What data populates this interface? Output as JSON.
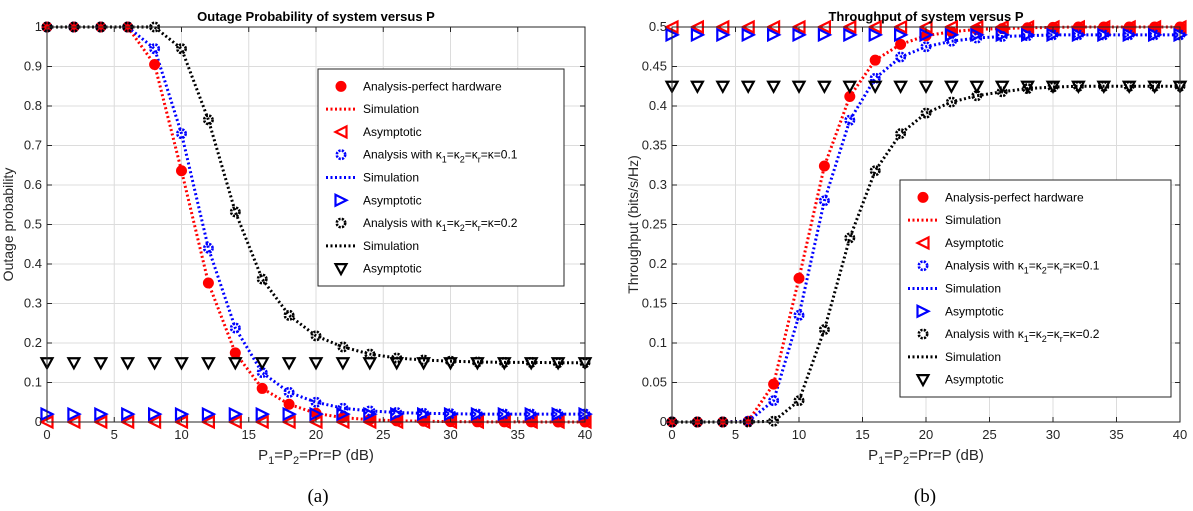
{
  "colors": {
    "perfect": "#ff0000",
    "k01": "#0000ff",
    "k02": "#000000"
  },
  "chart_data": [
    {
      "type": "line",
      "title": "Outage Probability of system versus P",
      "xlabel_parts": [
        "P",
        "1",
        "=P",
        "2",
        "=Pr=P (dB)"
      ],
      "ylabel": "Outage probability",
      "caption": "(a)",
      "xlim": [
        0,
        40
      ],
      "ylim": [
        0,
        1
      ],
      "xticks": [
        0,
        5,
        10,
        15,
        20,
        25,
        30,
        35,
        40
      ],
      "yticks": [
        0,
        0.1,
        0.2,
        0.3,
        0.4,
        0.5,
        0.6,
        0.7,
        0.8,
        0.9,
        1
      ],
      "ytick_labels": [
        "0",
        "0.1",
        "0.2",
        "0.3",
        "0.4",
        "0.5",
        "0.6",
        "0.7",
        "0.8",
        "0.9",
        "1"
      ],
      "grid": true,
      "legend_position": "right",
      "x": [
        0,
        2,
        4,
        6,
        8,
        10,
        12,
        14,
        16,
        18,
        20,
        22,
        24,
        26,
        28,
        30,
        32,
        34,
        36,
        38,
        40
      ],
      "series": [
        {
          "legend": "Analysis-perfect hardware",
          "group": "perfect",
          "style": "dot",
          "values": [
            1,
            1,
            1,
            1,
            0.905,
            0.636,
            0.352,
            0.175,
            0.085,
            0.045,
            0.022,
            0.011,
            0.006,
            0.003,
            0.002,
            0.001,
            0.0005,
            0.0003,
            0.0002,
            0.0001,
            0.0001
          ]
        },
        {
          "legend": "Simulation",
          "group": "perfect",
          "style": "dotted-line",
          "values": [
            1,
            1,
            1,
            1,
            0.905,
            0.636,
            0.352,
            0.175,
            0.085,
            0.045,
            0.022,
            0.011,
            0.006,
            0.003,
            0.002,
            0.001,
            0.0005,
            0.0003,
            0.0002,
            0.0001,
            0.0001
          ]
        },
        {
          "legend": "Asymptotic",
          "group": "perfect",
          "style": "triangle-left",
          "values": [
            0,
            0,
            0,
            0,
            0,
            0,
            0,
            0,
            0,
            0,
            0,
            0,
            0,
            0,
            0,
            0,
            0,
            0,
            0,
            0,
            0
          ]
        },
        {
          "legend_parts": [
            "Analysis with κ",
            "1",
            "=κ",
            "2",
            "=κ",
            "r",
            "=κ=0.1"
          ],
          "group": "k01",
          "style": "ring",
          "values": [
            1,
            1,
            1,
            1,
            0.945,
            0.73,
            0.44,
            0.238,
            0.125,
            0.075,
            0.05,
            0.035,
            0.028,
            0.024,
            0.022,
            0.021,
            0.02,
            0.02,
            0.02,
            0.02,
            0.02
          ]
        },
        {
          "legend": "Simulation",
          "group": "k01",
          "style": "dotted-line",
          "values": [
            1,
            1,
            1,
            1,
            0.945,
            0.73,
            0.44,
            0.238,
            0.125,
            0.075,
            0.05,
            0.035,
            0.028,
            0.024,
            0.022,
            0.021,
            0.02,
            0.02,
            0.02,
            0.02,
            0.02
          ]
        },
        {
          "legend": "Asymptotic",
          "group": "k01",
          "style": "triangle-right",
          "values": [
            0.02,
            0.02,
            0.02,
            0.02,
            0.02,
            0.02,
            0.02,
            0.02,
            0.02,
            0.02,
            0.02,
            0.02,
            0.02,
            0.02,
            0.02,
            0.02,
            0.02,
            0.02,
            0.02,
            0.02,
            0.02
          ]
        },
        {
          "legend_parts": [
            "Analysis with κ",
            "1",
            "=κ",
            "2",
            "=κ",
            "r",
            "=κ=0.2"
          ],
          "group": "k02",
          "style": "ring",
          "values": [
            1,
            1,
            1,
            1,
            1,
            0.945,
            0.765,
            0.532,
            0.362,
            0.27,
            0.218,
            0.19,
            0.172,
            0.162,
            0.157,
            0.154,
            0.152,
            0.151,
            0.151,
            0.15,
            0.15
          ]
        },
        {
          "legend": "Simulation",
          "group": "k02",
          "style": "dotted-line",
          "values": [
            1,
            1,
            1,
            1,
            1,
            0.945,
            0.765,
            0.532,
            0.362,
            0.27,
            0.218,
            0.19,
            0.172,
            0.162,
            0.157,
            0.154,
            0.152,
            0.151,
            0.151,
            0.15,
            0.15
          ]
        },
        {
          "legend": "Asymptotic",
          "group": "k02",
          "style": "triangle-down",
          "values": [
            0.15,
            0.15,
            0.15,
            0.15,
            0.15,
            0.15,
            0.15,
            0.15,
            0.15,
            0.15,
            0.15,
            0.15,
            0.15,
            0.15,
            0.15,
            0.15,
            0.15,
            0.15,
            0.15,
            0.15,
            0.15
          ]
        }
      ]
    },
    {
      "type": "line",
      "title": "Throughput of system versus P",
      "xlabel_parts": [
        "P",
        "1",
        "=P",
        "2",
        "=Pr=P (dB)"
      ],
      "ylabel": "Throughput (bits/s/Hz)",
      "caption": "(b)",
      "xlim": [
        0,
        40
      ],
      "ylim": [
        0,
        0.5
      ],
      "xticks": [
        0,
        5,
        10,
        15,
        20,
        25,
        30,
        35,
        40
      ],
      "yticks": [
        0,
        0.05,
        0.1,
        0.15,
        0.2,
        0.25,
        0.3,
        0.35,
        0.4,
        0.45,
        0.5
      ],
      "ytick_labels": [
        "0",
        "0.05",
        "0.1",
        "0.15",
        "0.2",
        "0.25",
        "0.3",
        "0.35",
        "0.4",
        "0.45",
        "0.5"
      ],
      "grid": true,
      "legend_position": "right",
      "x": [
        0,
        2,
        4,
        6,
        8,
        10,
        12,
        14,
        16,
        18,
        20,
        22,
        24,
        26,
        28,
        30,
        32,
        34,
        36,
        38,
        40
      ],
      "series": [
        {
          "legend": "Analysis-perfect hardware",
          "group": "perfect",
          "style": "dot",
          "values": [
            0,
            0,
            0,
            0.001,
            0.048,
            0.182,
            0.324,
            0.412,
            0.458,
            0.478,
            0.489,
            0.494,
            0.497,
            0.498,
            0.499,
            0.4995,
            0.5,
            0.5,
            0.5,
            0.5,
            0.5
          ]
        },
        {
          "legend": "Simulation",
          "group": "perfect",
          "style": "dotted-line",
          "values": [
            0,
            0,
            0,
            0.001,
            0.048,
            0.182,
            0.324,
            0.412,
            0.458,
            0.478,
            0.489,
            0.494,
            0.497,
            0.498,
            0.499,
            0.4995,
            0.5,
            0.5,
            0.5,
            0.5,
            0.5
          ]
        },
        {
          "legend": "Asymptotic",
          "group": "perfect",
          "style": "triangle-left",
          "values": [
            0.5,
            0.5,
            0.5,
            0.5,
            0.5,
            0.5,
            0.5,
            0.5,
            0.5,
            0.5,
            0.5,
            0.5,
            0.5,
            0.5,
            0.5,
            0.5,
            0.5,
            0.5,
            0.5,
            0.5,
            0.5
          ]
        },
        {
          "legend_parts": [
            "Analysis with κ",
            "1",
            "=κ",
            "2",
            "=κ",
            "r",
            "=κ=0.1"
          ],
          "group": "k01",
          "style": "ring",
          "values": [
            0,
            0,
            0,
            0.001,
            0.027,
            0.135,
            0.28,
            0.382,
            0.435,
            0.462,
            0.475,
            0.482,
            0.486,
            0.488,
            0.489,
            0.49,
            0.49,
            0.49,
            0.49,
            0.49,
            0.49
          ]
        },
        {
          "legend": "Simulation",
          "group": "k01",
          "style": "dotted-line",
          "values": [
            0,
            0,
            0,
            0.001,
            0.027,
            0.135,
            0.28,
            0.382,
            0.435,
            0.462,
            0.475,
            0.482,
            0.486,
            0.488,
            0.489,
            0.49,
            0.49,
            0.49,
            0.49,
            0.49,
            0.49
          ]
        },
        {
          "legend": "Asymptotic",
          "group": "k01",
          "style": "triangle-right",
          "values": [
            0.49,
            0.49,
            0.49,
            0.49,
            0.49,
            0.49,
            0.49,
            0.49,
            0.49,
            0.49,
            0.49,
            0.49,
            0.49,
            0.49,
            0.49,
            0.49,
            0.49,
            0.49,
            0.49,
            0.49,
            0.49
          ]
        },
        {
          "legend_parts": [
            "Analysis with κ",
            "1",
            "=κ",
            "2",
            "=κ",
            "r",
            "=κ=0.2"
          ],
          "group": "k02",
          "style": "ring",
          "values": [
            0,
            0,
            0,
            0,
            0.001,
            0.027,
            0.117,
            0.233,
            0.318,
            0.365,
            0.391,
            0.405,
            0.413,
            0.418,
            0.422,
            0.424,
            0.425,
            0.425,
            0.425,
            0.425,
            0.425
          ]
        },
        {
          "legend": "Simulation",
          "group": "k02",
          "style": "dotted-line",
          "values": [
            0,
            0,
            0,
            0,
            0.001,
            0.027,
            0.117,
            0.233,
            0.318,
            0.365,
            0.391,
            0.405,
            0.413,
            0.418,
            0.422,
            0.424,
            0.425,
            0.425,
            0.425,
            0.425,
            0.425
          ]
        },
        {
          "legend": "Asymptotic",
          "group": "k02",
          "style": "triangle-down",
          "values": [
            0.425,
            0.425,
            0.425,
            0.425,
            0.425,
            0.425,
            0.425,
            0.425,
            0.425,
            0.425,
            0.425,
            0.425,
            0.425,
            0.425,
            0.425,
            0.425,
            0.425,
            0.425,
            0.425,
            0.425,
            0.425
          ]
        }
      ]
    }
  ]
}
